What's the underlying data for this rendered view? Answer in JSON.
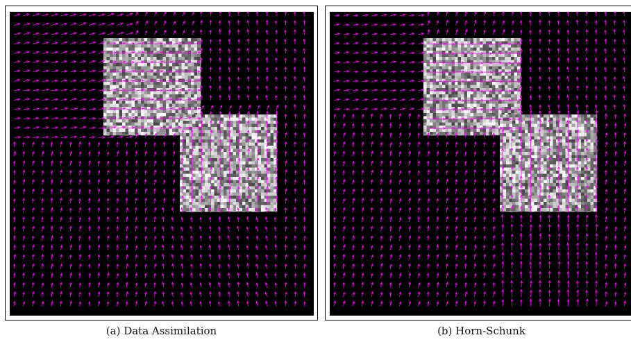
{
  "figure": {
    "panels": [
      {
        "id": "a",
        "caption": "(a) Data Assimilation",
        "arrow_color": "#ff00ff",
        "method": "data-assimilation"
      },
      {
        "id": "b",
        "caption": "(b) Horn-Schunk",
        "arrow_color": "#ff00ff",
        "method": "horn-schunk"
      }
    ],
    "background_color": "#000000",
    "square_texture": "random-gray-noise"
  }
}
